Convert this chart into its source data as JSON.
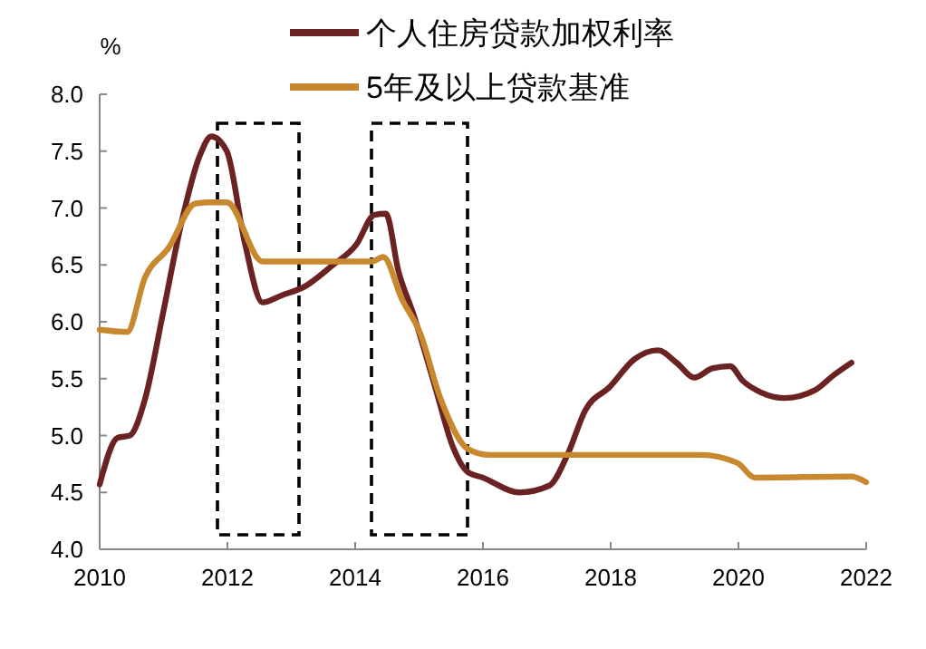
{
  "chart_data": {
    "type": "line",
    "ylabel": "%",
    "legend": "top",
    "xlim": [
      2010,
      2022
    ],
    "xticks": [
      2010,
      2012,
      2014,
      2016,
      2018,
      2020,
      2022
    ],
    "ylim": [
      4,
      8
    ],
    "yticks": [
      {
        "value": 4,
        "label": "4.0"
      },
      {
        "value": 4.5,
        "label": "4.5"
      },
      {
        "value": 5,
        "label": "5.0"
      },
      {
        "value": 5.5,
        "label": "5.5"
      },
      {
        "value": 6,
        "label": "6.0"
      },
      {
        "value": 6.5,
        "label": "6.5"
      },
      {
        "value": 7,
        "label": "7.0"
      },
      {
        "value": 7.5,
        "label": "7.5"
      },
      {
        "value": 8,
        "label": "8.0"
      }
    ],
    "series": [
      {
        "name": "个人住房贷款加权利率",
        "color": "#6b2222",
        "x": [
          2010,
          2010.28,
          2010.47,
          2010.71,
          2010.99,
          2011.28,
          2011.56,
          2011.75,
          2011.99,
          2012.27,
          2012.55,
          2012.84,
          2013.21,
          2013.63,
          2014.02,
          2014.3,
          2014.48,
          2014.68,
          2014.91,
          2015.25,
          2015.53,
          2015.76,
          2016.0,
          2016.57,
          2017.04,
          2017.33,
          2017.6,
          2017.99,
          2018.37,
          2018.74,
          2019.03,
          2019.31,
          2019.59,
          2019.87,
          2020.07,
          2020.35,
          2020.72,
          2021.2,
          2021.49,
          2021.77
        ],
        "values": [
          4.57,
          4.98,
          5.0,
          5.32,
          6.07,
          6.87,
          7.45,
          7.63,
          7.5,
          6.7,
          6.17,
          6.23,
          6.31,
          6.49,
          6.68,
          6.94,
          6.95,
          6.44,
          6.07,
          5.43,
          4.9,
          4.68,
          4.63,
          4.5,
          4.56,
          4.84,
          5.22,
          5.43,
          5.67,
          5.75,
          5.64,
          5.51,
          5.59,
          5.61,
          5.48,
          5.38,
          5.33,
          5.4,
          5.53,
          5.64
        ]
      },
      {
        "name": "5年及以上贷款基准",
        "color": "#c8882e",
        "x": [
          2010,
          2010.43,
          2010.71,
          2011.08,
          2011.5,
          2011.75,
          2011.99,
          2012.55,
          2014.26,
          2014.44,
          2014.73,
          2015.01,
          2015.34,
          2015.77,
          2016.1,
          2019.41,
          2019.98,
          2020.26,
          2021.77,
          2022
        ],
        "values": [
          5.93,
          5.91,
          6.39,
          6.65,
          7.04,
          7.05,
          7.05,
          6.53,
          6.53,
          6.57,
          6.2,
          5.91,
          5.32,
          4.88,
          4.83,
          4.83,
          4.76,
          4.63,
          4.64,
          4.59
        ]
      }
    ]
  }
}
